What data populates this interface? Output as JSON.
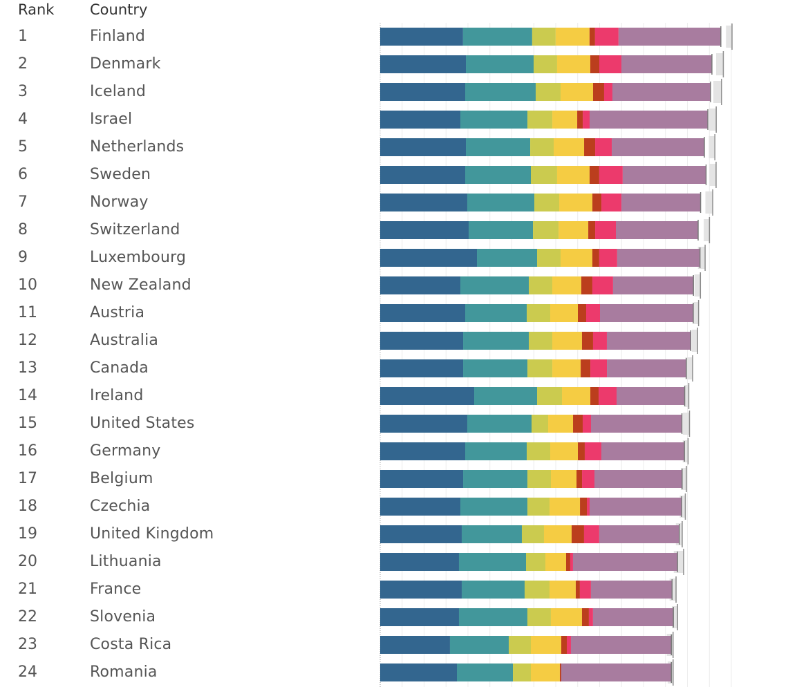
{
  "header": {
    "rank_label": "Rank",
    "country_label": "Country"
  },
  "chart_data": {
    "type": "bar",
    "orientation": "horizontal",
    "stacked": true,
    "xlim": [
      0,
      8
    ],
    "grid": true,
    "colors": [
      "#33668f",
      "#42979b",
      "#cbcb4f",
      "#f5cc43",
      "#bb3e1d",
      "#ec3a6c",
      "#a87c9f"
    ],
    "categories": [
      "Finland",
      "Denmark",
      "Iceland",
      "Israel",
      "Netherlands",
      "Sweden",
      "Norway",
      "Switzerland",
      "Luxembourg",
      "New Zealand",
      "Austria",
      "Australia",
      "Canada",
      "Ireland",
      "United States",
      "Germany",
      "Belgium",
      "Czechia",
      "United Kingdom",
      "Lithuania",
      "France",
      "Slovenia",
      "Costa Rica",
      "Romania"
    ],
    "ranks": [
      "1",
      "2",
      "3",
      "4",
      "5",
      "6",
      "7",
      "8",
      "9",
      "10",
      "11",
      "12",
      "13",
      "14",
      "15",
      "16",
      "17",
      "18",
      "19",
      "20",
      "21",
      "22",
      "23",
      "24"
    ],
    "segments": [
      [
        1.888,
        1.575,
        0.535,
        0.772,
        0.126,
        0.535,
        2.33
      ],
      [
        1.953,
        1.543,
        0.535,
        0.756,
        0.205,
        0.504,
        2.062
      ],
      [
        1.937,
        1.606,
        0.567,
        0.74,
        0.252,
        0.189,
        2.236
      ],
      [
        1.827,
        1.528,
        0.567,
        0.567,
        0.126,
        0.157,
        2.693
      ],
      [
        1.953,
        1.465,
        0.535,
        0.693,
        0.252,
        0.378,
        2.11
      ],
      [
        1.937,
        1.496,
        0.598,
        0.74,
        0.22,
        0.535,
        1.899
      ],
      [
        1.984,
        1.528,
        0.567,
        0.756,
        0.205,
        0.457,
        1.803
      ],
      [
        2.016,
        1.465,
        0.583,
        0.677,
        0.157,
        0.472,
        1.874
      ],
      [
        2.205,
        1.37,
        0.535,
        0.724,
        0.157,
        0.409,
        1.886
      ],
      [
        1.827,
        1.559,
        0.535,
        0.661,
        0.252,
        0.472,
        1.831
      ],
      [
        1.937,
        1.402,
        0.535,
        0.63,
        0.189,
        0.315,
        2.126
      ],
      [
        1.89,
        1.496,
        0.535,
        0.677,
        0.252,
        0.315,
        1.911
      ],
      [
        1.89,
        1.465,
        0.567,
        0.646,
        0.22,
        0.378,
        1.809
      ],
      [
        2.142,
        1.433,
        0.567,
        0.646,
        0.189,
        0.409,
        1.552
      ],
      [
        1.984,
        1.465,
        0.378,
        0.567,
        0.22,
        0.189,
        2.072
      ],
      [
        1.937,
        1.402,
        0.535,
        0.63,
        0.157,
        0.378,
        1.893
      ],
      [
        1.89,
        1.465,
        0.535,
        0.583,
        0.126,
        0.283,
        1.997
      ],
      [
        1.827,
        1.528,
        0.504,
        0.693,
        0.157,
        0.063,
        2.097
      ],
      [
        1.858,
        1.37,
        0.504,
        0.63,
        0.283,
        0.346,
        1.824
      ],
      [
        1.795,
        1.528,
        0.441,
        0.472,
        0.094,
        0.063,
        2.381
      ],
      [
        1.858,
        1.433,
        0.567,
        0.598,
        0.094,
        0.252,
        1.848
      ],
      [
        1.795,
        1.559,
        0.535,
        0.709,
        0.157,
        0.094,
        1.831
      ],
      [
        1.59,
        1.339,
        0.504,
        0.693,
        0.126,
        0.094,
        2.288
      ],
      [
        1.748,
        1.276,
        0.409,
        0.661,
        0.031,
        0.0,
        2.509
      ]
    ],
    "range_low": [
      7.878,
      7.654,
      7.591,
      7.492,
      7.487,
      7.504,
      7.409,
      7.372,
      7.24,
      7.16,
      7.149,
      7.1,
      6.955,
      6.949,
      6.896,
      6.893,
      6.85,
      6.826,
      6.737,
      6.689,
      6.593,
      6.645,
      6.53,
      6.55
    ],
    "range_high": [
      8.016,
      7.818,
      7.776,
      7.656,
      7.625,
      7.653,
      7.576,
      7.502,
      7.403,
      7.296,
      7.254,
      7.232,
      7.118,
      7.031,
      7.047,
      7.015,
      6.977,
      6.952,
      6.881,
      6.913,
      6.741,
      6.775,
      6.673,
      6.674
    ]
  }
}
